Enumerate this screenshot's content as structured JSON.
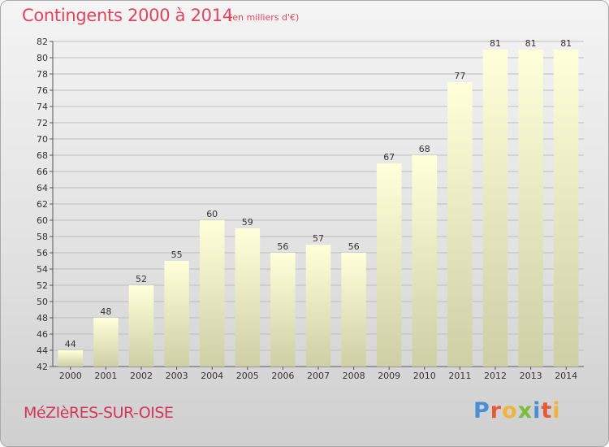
{
  "header": {
    "title": "Contingents 2000 à 2014",
    "subtitle": "(en milliers d'€)"
  },
  "footer": {
    "commune": "MéZIèRES-SUR-OISE",
    "brand": "Proxiti",
    "brand_colors": [
      "#4a8fd6",
      "#e8593a",
      "#f0b43c",
      "#7cbd3a",
      "#4a8fd6",
      "#e8593a",
      "#f0b43c"
    ]
  },
  "colors": {
    "bar_top": "#ffffd9",
    "bar_bottom": "#cfcfa6",
    "grid": "#bdbdbd",
    "text": "#333333"
  },
  "chart_data": {
    "type": "bar",
    "title": "Contingents 2000 à 2014",
    "subtitle": "(en milliers d'€)",
    "categories": [
      "2000",
      "2001",
      "2002",
      "2003",
      "2004",
      "2005",
      "2006",
      "2007",
      "2008",
      "2009",
      "2010",
      "2011",
      "2012",
      "2013",
      "2014"
    ],
    "values": [
      44,
      48,
      52,
      55,
      60,
      59,
      56,
      57,
      56,
      67,
      68,
      77,
      81,
      81,
      81
    ],
    "ylim": [
      42,
      82
    ],
    "yticks": [
      42,
      44,
      46,
      48,
      50,
      52,
      54,
      56,
      58,
      60,
      62,
      64,
      66,
      68,
      70,
      72,
      74,
      76,
      78,
      80,
      82
    ],
    "xlabel": "",
    "ylabel": "",
    "grid": true,
    "data_labels": true
  }
}
